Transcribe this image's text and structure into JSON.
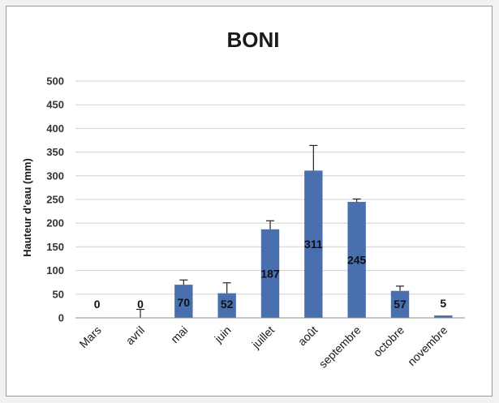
{
  "chart_data": {
    "type": "bar",
    "title": "BONI",
    "xlabel": "",
    "ylabel": "Hauteur d'eau (mm)",
    "ylim": [
      0,
      500
    ],
    "yticks": [
      0,
      50,
      100,
      150,
      200,
      250,
      300,
      350,
      400,
      450,
      500
    ],
    "grid": true,
    "legend": "none",
    "bar_color": "#4a6fae",
    "categories": [
      "Mars",
      "avril",
      "mai",
      "juin",
      "juillet",
      "août",
      "septembre",
      "octobre",
      "novembre"
    ],
    "values": [
      0,
      0,
      70,
      52,
      187,
      311,
      245,
      57,
      5
    ],
    "error_bars": [
      0,
      18,
      10,
      22,
      18,
      53,
      6,
      10,
      0
    ],
    "data_labels": [
      "0",
      "0",
      "70",
      "52",
      "187",
      "311",
      "245",
      "57",
      "5"
    ]
  }
}
